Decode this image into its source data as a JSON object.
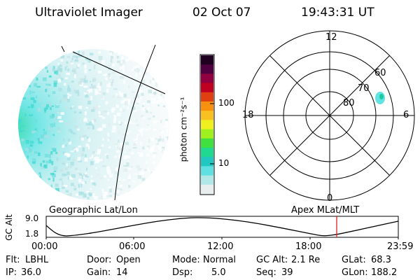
{
  "header": {
    "instrument": "Ultraviolet Imager",
    "date": "02 Oct 07",
    "time": "19:43:31 UT"
  },
  "colorbar": {
    "label": "photon cm⁻²s⁻¹",
    "ticks": [
      "100",
      "10"
    ],
    "scale": "log",
    "colors": [
      "#e8eeee",
      "#b0e8e8",
      "#60e0e0",
      "#20c8c0",
      "#20d890",
      "#40e040",
      "#a0f020",
      "#f0f020",
      "#f8c020",
      "#f89010",
      "#e04010",
      "#c00020",
      "#900040",
      "#500040",
      "#200020"
    ]
  },
  "polar_plot": {
    "hour_labels": {
      "top": "12",
      "left": "18",
      "right": "6",
      "bottom": "0"
    },
    "lat_labels": [
      "60",
      "70",
      "80"
    ],
    "blob_color": "#40e0e0"
  },
  "timeline": {
    "left_label": "Geographic Lat/Lon",
    "right_label": "Apex  MLat/MLT",
    "y_axis_label": "GC Alt",
    "y_ticks": [
      "9.0",
      "1.8"
    ],
    "x_ticks": [
      "00:00",
      "06:00",
      "12:00",
      "18:00",
      "23:59"
    ],
    "marker_color": "#e02020",
    "marker_time": "19:43"
  },
  "footer": {
    "row1": [
      {
        "key": "Flt:",
        "val": "LBHL"
      },
      {
        "key": "Door:",
        "val": "Open"
      },
      {
        "key": "Mode:",
        "val": "Normal"
      },
      {
        "key": "GC Alt:",
        "val": "2.1 Re"
      },
      {
        "key": "GLat:",
        "val": "68.3"
      }
    ],
    "row2": [
      {
        "key": "IP:",
        "val": "36.0"
      },
      {
        "key": "Gain:",
        "val": "14"
      },
      {
        "key": "Dsp:",
        "val": "5.0"
      },
      {
        "key": "Seq:",
        "val": "39"
      },
      {
        "key": "GLon:",
        "val": "188.2"
      }
    ]
  }
}
